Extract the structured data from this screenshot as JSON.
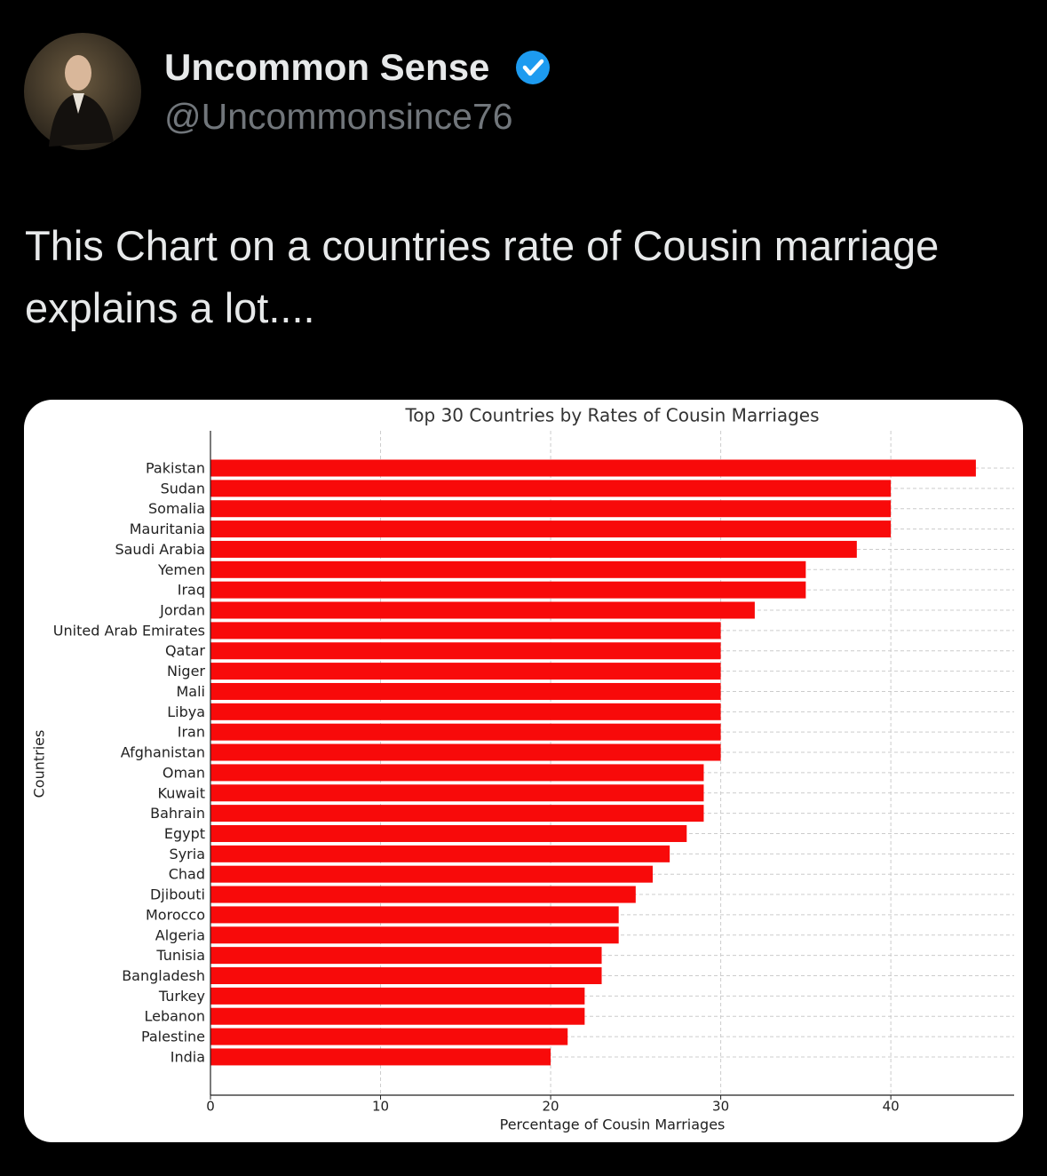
{
  "tweet": {
    "name": "Uncommon Sense",
    "handle": "@Uncommonsince76",
    "text": "This Chart on a countries rate of Cousin marriage explains a lot...."
  },
  "chart_data": {
    "type": "barh",
    "title": "Top 30 Countries by Rates of Cousin Marriages",
    "x_label": "Percentage of Cousin Marriages",
    "y_label": "Countries",
    "categories": [
      "Pakistan",
      "Sudan",
      "Somalia",
      "Mauritania",
      "Saudi Arabia",
      "Yemen",
      "Iraq",
      "Jordan",
      "United Arab Emirates",
      "Qatar",
      "Niger",
      "Mali",
      "Libya",
      "Iran",
      "Afghanistan",
      "Oman",
      "Kuwait",
      "Bahrain",
      "Egypt",
      "Syria",
      "Chad",
      "Djibouti",
      "Morocco",
      "Algeria",
      "Tunisia",
      "Bangladesh",
      "Turkey",
      "Lebanon",
      "Palestine",
      "India"
    ],
    "values": [
      45,
      40,
      40,
      40,
      38,
      35,
      35,
      32,
      30,
      30,
      30,
      30,
      30,
      30,
      30,
      29,
      29,
      29,
      28,
      27,
      26,
      25,
      24,
      24,
      23,
      23,
      22,
      22,
      21,
      20
    ],
    "color": "#f80a0a",
    "xlim": [
      0,
      47.25
    ],
    "xticks": [
      0,
      10,
      20,
      30,
      40
    ],
    "grid": true
  }
}
